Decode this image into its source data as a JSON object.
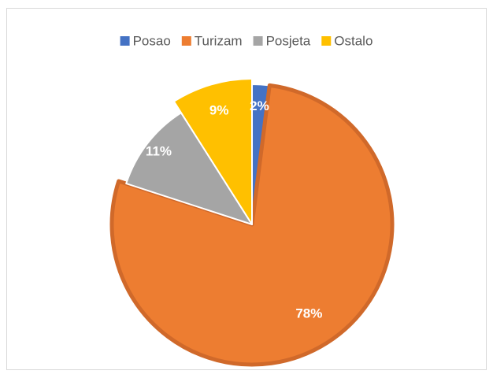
{
  "chart_data": {
    "type": "pie",
    "categories": [
      "Posao",
      "Turizam",
      "Posjeta",
      "Ostalo"
    ],
    "values": [
      2,
      78,
      11,
      9
    ],
    "value_labels": [
      "2%",
      "78%",
      "11%",
      "9%"
    ],
    "colors": [
      "#4472c4",
      "#ed7d31",
      "#a5a5a5",
      "#ffc000"
    ],
    "legend": "top"
  }
}
